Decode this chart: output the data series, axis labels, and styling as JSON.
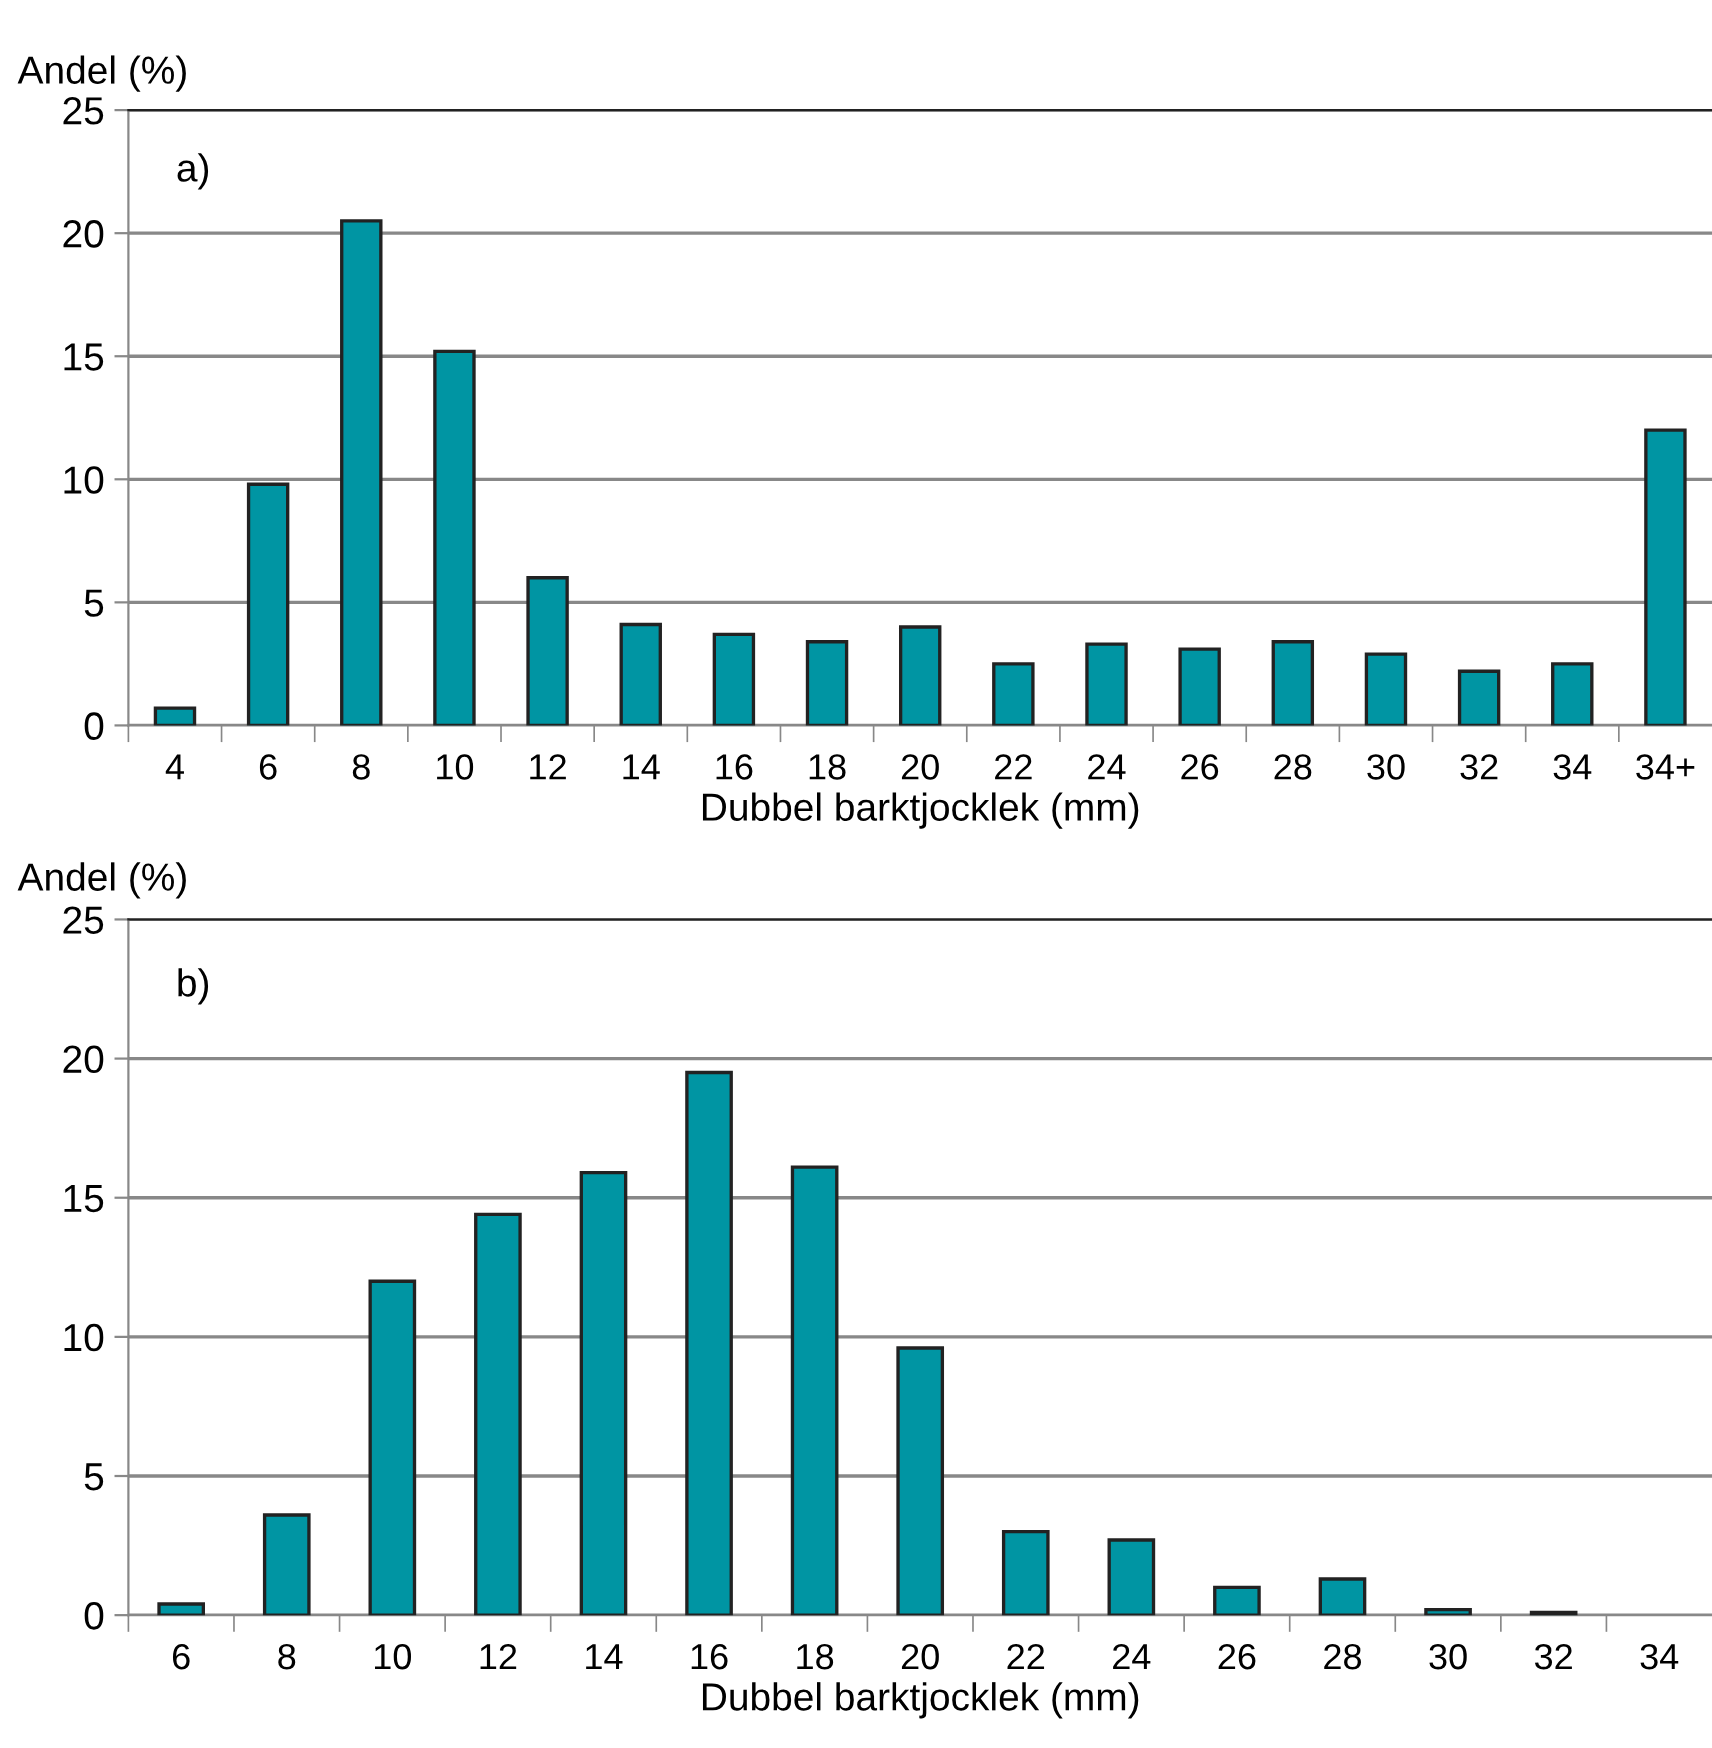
{
  "chart_data": [
    {
      "type": "bar",
      "ylabel": "Andel (%)",
      "xlabel": "Dubbel barktjocklek (mm)",
      "annotations": [
        "a)"
      ],
      "categories": [
        "4",
        "6",
        "8",
        "10",
        "12",
        "14",
        "16",
        "18",
        "20",
        "22",
        "24",
        "26",
        "28",
        "30",
        "32",
        "34",
        "34+"
      ],
      "values": [
        0.7,
        9.8,
        20.5,
        15.2,
        6.0,
        4.1,
        3.7,
        3.4,
        4.0,
        2.5,
        3.3,
        3.1,
        3.4,
        2.9,
        2.2,
        2.5,
        12.0
      ],
      "color": "#0095a3",
      "ylim": [
        0,
        25
      ],
      "yticks": [
        0,
        5,
        10,
        15,
        20,
        25
      ],
      "grid": "y"
    },
    {
      "type": "bar",
      "ylabel": "Andel (%)",
      "xlabel": "Dubbel barktjocklek (mm)",
      "annotations": [
        "b)"
      ],
      "categories": [
        "6",
        "8",
        "10",
        "12",
        "14",
        "16",
        "18",
        "20",
        "22",
        "24",
        "26",
        "28",
        "30",
        "32",
        "34"
      ],
      "values": [
        0.4,
        3.6,
        12.0,
        14.4,
        15.9,
        19.5,
        16.1,
        9.6,
        3.0,
        2.7,
        1.0,
        1.3,
        0.2,
        0.1,
        null
      ],
      "color": "#0095a3",
      "ylim": [
        0,
        25
      ],
      "yticks": [
        0,
        5,
        10,
        15,
        20,
        25
      ],
      "grid": "y"
    }
  ]
}
